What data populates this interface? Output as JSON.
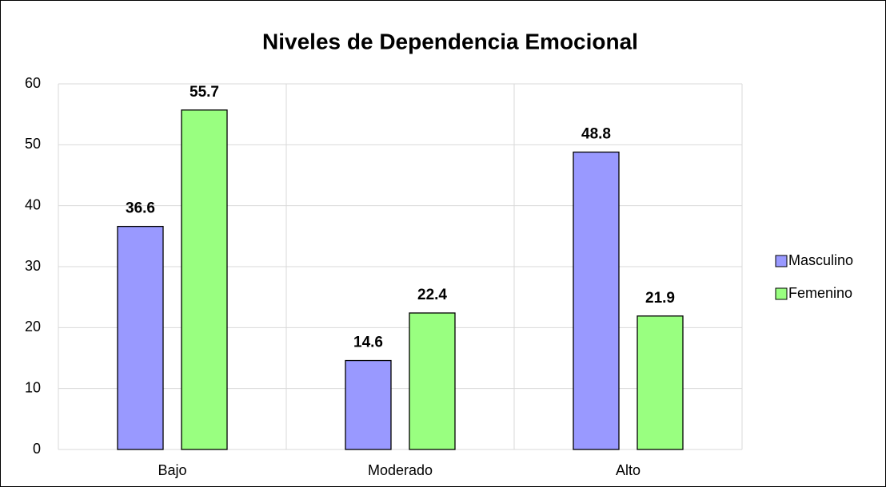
{
  "chart_data": {
    "type": "bar",
    "title": "Niveles de Dependencia Emocional",
    "categories": [
      "Bajo",
      "Moderado",
      "Alto"
    ],
    "series": [
      {
        "name": "Masculino",
        "color": "#9999ff",
        "values": [
          36.6,
          14.6,
          48.8
        ]
      },
      {
        "name": "Femenino",
        "color": "#99ff80",
        "values": [
          55.7,
          22.4,
          21.9
        ]
      }
    ],
    "ylim": [
      0,
      60
    ],
    "yticks": [
      0,
      10,
      20,
      30,
      40,
      50,
      60
    ],
    "grid": true,
    "legend": "right"
  }
}
